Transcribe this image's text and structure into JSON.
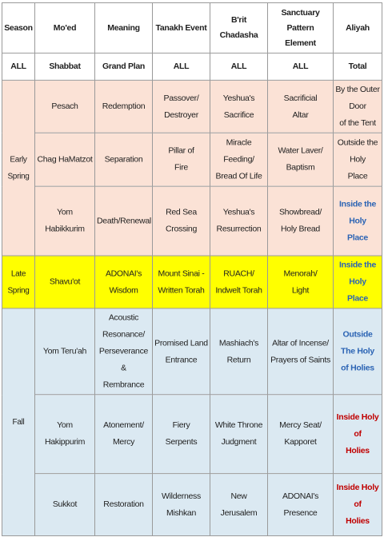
{
  "headers": [
    "Season",
    "Mo'ed",
    "Meaning",
    "Tanakh Event",
    "B'rit Chadasha",
    "Sanctuary Pattern\nElement",
    "Aliyah"
  ],
  "all_row": [
    "ALL",
    "Shabbat",
    "Grand Plan",
    "ALL",
    "ALL",
    "ALL",
    "Total"
  ],
  "seasons": {
    "early_spring": "Early Spring",
    "late_spring": "Late Spring",
    "fall": "Fall"
  },
  "rows": [
    {
      "moed": "Pesach",
      "meaning": "Redemption",
      "tanakh": "Passover/\nDestroyer",
      "brit": "Yeshua's\nSacrifice",
      "sanctuary": "Sacrificial\nAltar",
      "aliyah": "By the Outer Door\nof the Tent"
    },
    {
      "moed": "Chag HaMatzot",
      "meaning": "Separation",
      "tanakh": "Pillar of\nFire",
      "brit": "Miracle Feeding/\nBread Of Life",
      "sanctuary": "Water Laver/\nBaptism",
      "aliyah": "Outside the Holy\nPlace"
    },
    {
      "moed": "Yom Habikkurim",
      "meaning": "Death/Renewal",
      "tanakh": "Red Sea\nCrossing",
      "brit": "Yeshua's\nResurrection",
      "sanctuary": "Showbread/\nHoly Bread",
      "aliyah": "Inside the Holy\nPlace"
    },
    {
      "moed": "Shavu'ot",
      "meaning": "ADONAI's\nWisdom",
      "tanakh": "Mount Sinai -\nWritten Torah",
      "brit": "RUACH/\nIndwelt Torah",
      "sanctuary": "Menorah/\nLight",
      "aliyah": "Inside the Holy\nPlace"
    },
    {
      "moed": "Yom Teru'ah",
      "meaning": "Acoustic Resonance/\nPerseverance &\nRembrance",
      "tanakh": "Promised Land\nEntrance",
      "brit": "Mashiach's\nReturn",
      "sanctuary": "Altar of Incense/\nPrayers of Saints",
      "aliyah": "Outside The Holy\nof Holies"
    },
    {
      "moed": "Yom Hakippurim",
      "meaning": "Atonement/\nMercy",
      "tanakh": "Fiery\nSerpents",
      "brit": "White Throne\nJudgment",
      "sanctuary": "Mercy Seat/\nKapporet",
      "aliyah": "Inside Holy of\nHolies"
    },
    {
      "moed": "Sukkot",
      "meaning": "Restoration",
      "tanakh": "Wilderness\nMishkan",
      "brit": "New\nJerusalem",
      "sanctuary": "ADONAI's\nPresence",
      "aliyah": "Inside Holy of\nHolies"
    }
  ],
  "colors": {
    "spring": "#fbe2d6",
    "late_spring": "#ffff00",
    "fall": "#dbe9f2",
    "aliyah_blue": "#2c64b4",
    "aliyah_red": "#c00000"
  }
}
